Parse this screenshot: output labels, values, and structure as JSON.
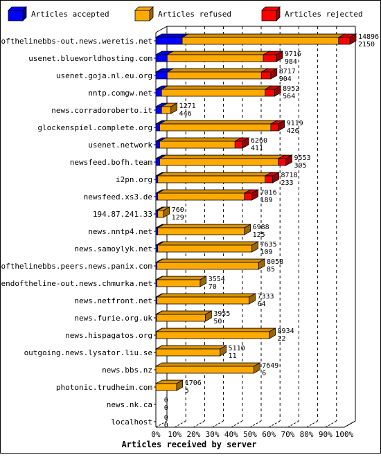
{
  "chart_data": {
    "type": "bar",
    "orientation": "horizontal",
    "stacked": true,
    "title": "",
    "xlabel": "Articles received by server",
    "ylabel": "",
    "xlim": [
      0,
      100
    ],
    "x_ticks": [
      "0%",
      "10%",
      "20%",
      "30%",
      "40%",
      "50%",
      "60%",
      "70%",
      "80%",
      "90%",
      "100%"
    ],
    "grid": "vertical dashed",
    "legend_position": "top",
    "series": [
      {
        "name": "Articles accepted",
        "color": "#0000ff"
      },
      {
        "name": "Articles refused",
        "color": "#ffaa00"
      },
      {
        "name": "Articles rejected",
        "color": "#ff0000"
      }
    ],
    "rows": [
      {
        "server": "endofthelinebbs-out.news.weretis.net",
        "pct": [
          14,
          83,
          6
        ],
        "labels": [
          "14896",
          "2150"
        ]
      },
      {
        "server": "usenet.blueworldhosting.com",
        "pct": [
          6,
          51,
          7
        ],
        "labels": [
          "9716",
          "984"
        ]
      },
      {
        "server": "usenet.goja.nl.eu.org",
        "pct": [
          6,
          50,
          5
        ],
        "labels": [
          "8717",
          "904"
        ]
      },
      {
        "server": "nntp.comgw.net",
        "pct": [
          3,
          55,
          5
        ],
        "labels": [
          "8952",
          "564"
        ]
      },
      {
        "server": "news.corradoroberto.it",
        "pct": [
          3,
          5,
          0
        ],
        "labels": [
          "1271",
          "446"
        ]
      },
      {
        "server": "glockenspiel.complete.org",
        "pct": [
          2,
          59,
          4
        ],
        "labels": [
          "9119",
          "426"
        ]
      },
      {
        "server": "usenet.network",
        "pct": [
          2,
          40,
          4
        ],
        "labels": [
          "6260",
          "411"
        ]
      },
      {
        "server": "newsfeed.bofh.team",
        "pct": [
          2,
          63,
          4
        ],
        "labels": [
          "9553",
          "305"
        ]
      },
      {
        "server": "i2pn.org",
        "pct": [
          1,
          57,
          4
        ],
        "labels": [
          "8718",
          "233"
        ]
      },
      {
        "server": "newsfeed.xs3.de",
        "pct": [
          1,
          46,
          4
        ],
        "labels": [
          "7016",
          "189"
        ]
      },
      {
        "server": "194.87.241.33",
        "pct": [
          1,
          3,
          0
        ],
        "labels": [
          "760",
          "129"
        ]
      },
      {
        "server": "news.nntp4.net",
        "pct": [
          1,
          46,
          0
        ],
        "labels": [
          "6988",
          "125"
        ]
      },
      {
        "server": "news.samoylyk.net",
        "pct": [
          1,
          50,
          0
        ],
        "labels": [
          "7635",
          "109"
        ]
      },
      {
        "server": "endofthelinebbs.peers.news.panix.com",
        "pct": [
          0.5,
          54,
          0
        ],
        "labels": [
          "8058",
          "85"
        ]
      },
      {
        "server": "endoftheline-out.news.chmurka.net",
        "pct": [
          0.5,
          23,
          0
        ],
        "labels": [
          "3554",
          "70"
        ]
      },
      {
        "server": "news.netfront.net",
        "pct": [
          0.5,
          49,
          0
        ],
        "labels": [
          "7333",
          "64"
        ]
      },
      {
        "server": "news.furie.org.uk",
        "pct": [
          0.3,
          26,
          0
        ],
        "labels": [
          "3955",
          "50"
        ]
      },
      {
        "server": "news.hispagatos.org",
        "pct": [
          0.2,
          60,
          0
        ],
        "labels": [
          "8934",
          "22"
        ]
      },
      {
        "server": "outgoing.news.lysator.liu.se",
        "pct": [
          0.1,
          34,
          0
        ],
        "labels": [
          "5110",
          "11"
        ]
      },
      {
        "server": "news.bbs.nz",
        "pct": [
          0,
          52,
          0
        ],
        "labels": [
          "7649",
          "6"
        ]
      },
      {
        "server": "photonic.trudheim.com",
        "pct": [
          0,
          11,
          0
        ],
        "labels": [
          "1706",
          "5"
        ]
      },
      {
        "server": "news.nk.ca",
        "pct": [
          0,
          0,
          0
        ],
        "labels": [
          "0",
          "0"
        ]
      },
      {
        "server": "localhost",
        "pct": [
          0,
          0,
          0
        ],
        "labels": [
          "0",
          "0"
        ]
      }
    ]
  }
}
